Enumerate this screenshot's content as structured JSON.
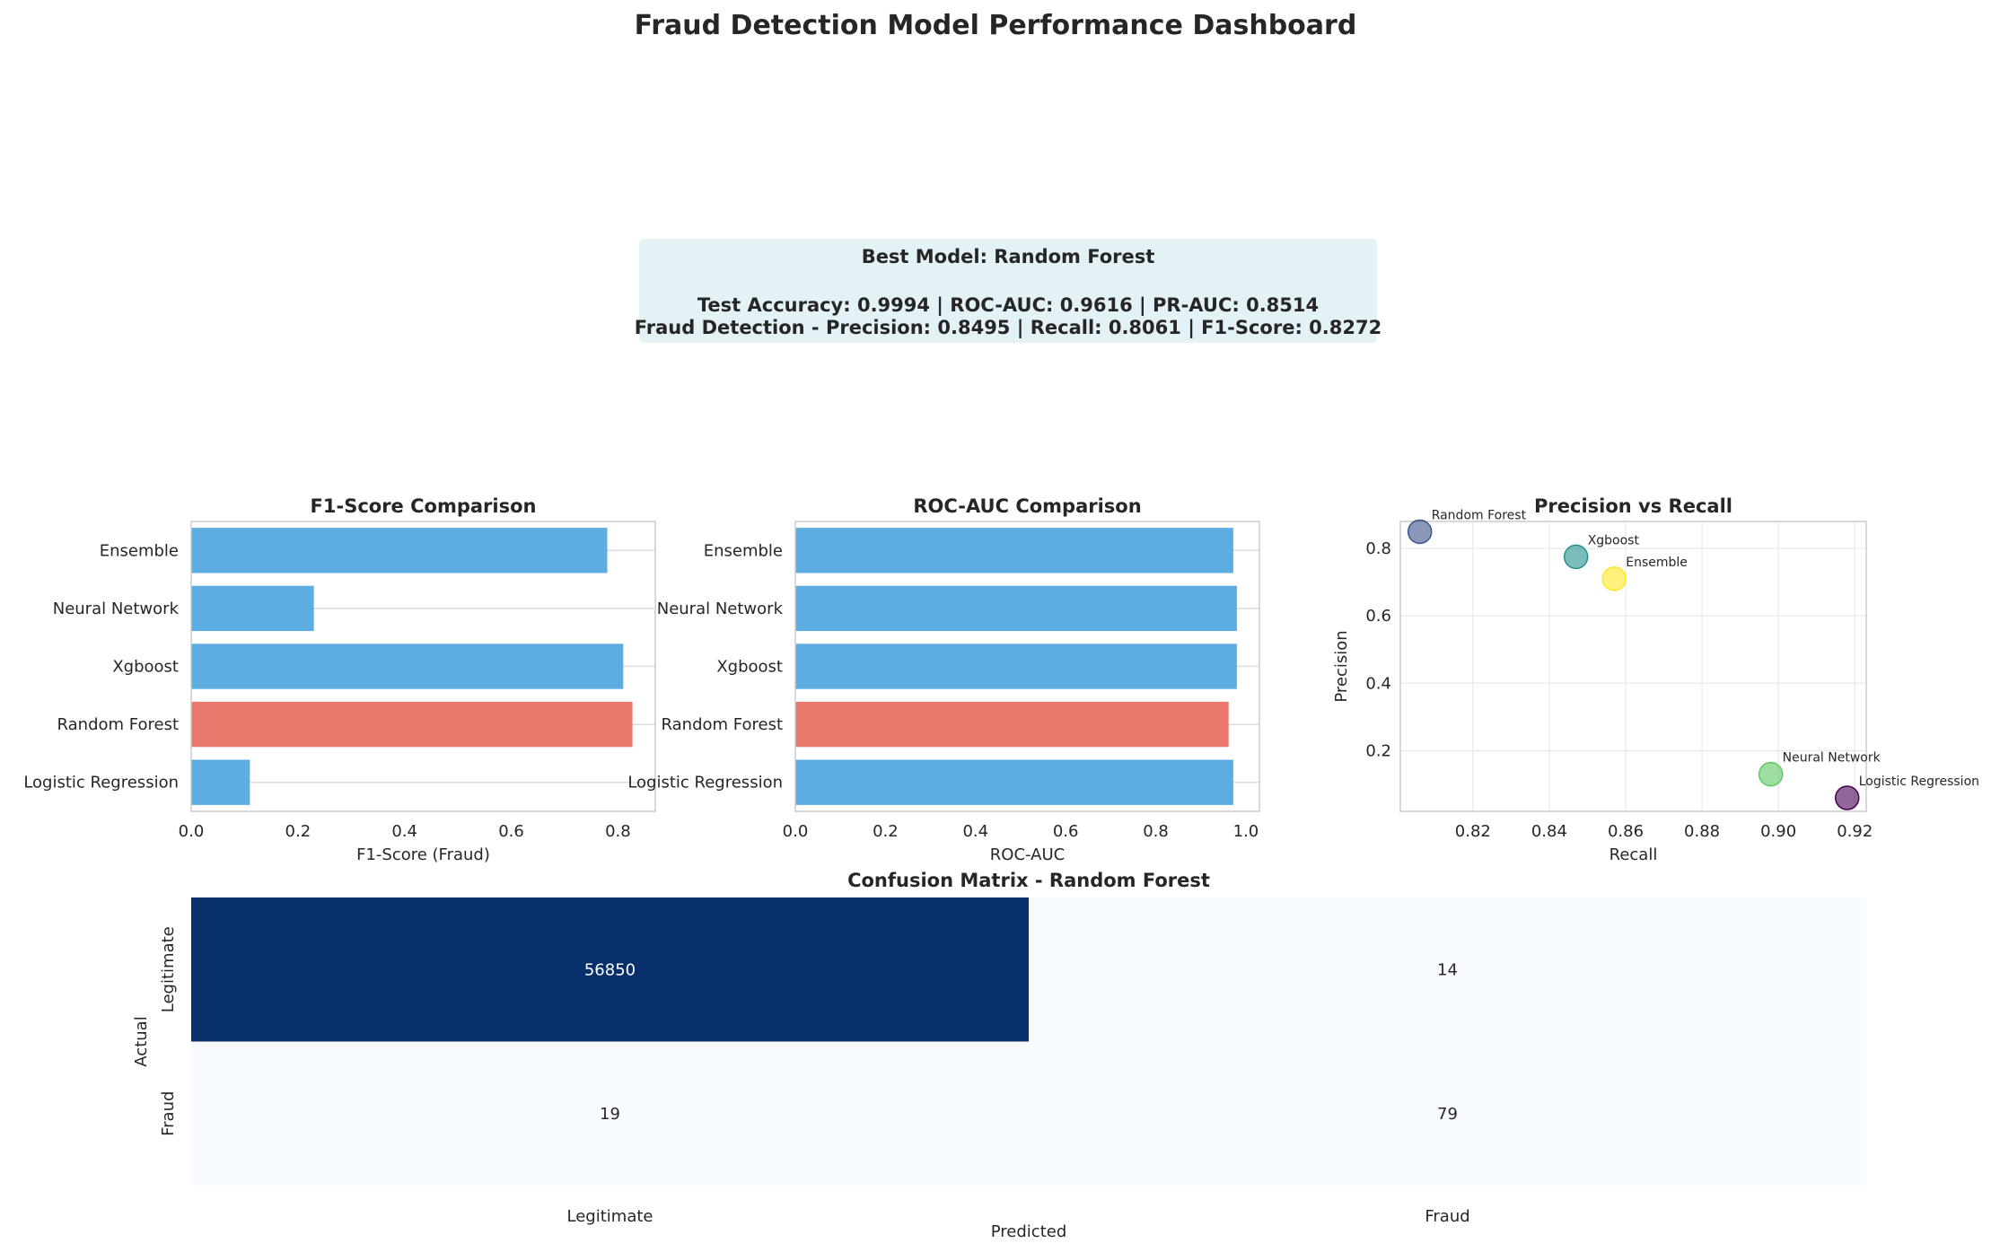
{
  "figure_title": "Fraud Detection Model Performance Dashboard",
  "summary": {
    "line1": "Best Model: Random Forest",
    "line2": "Test Accuracy: 0.9994  |  ROC-AUC: 0.9616  |  PR-AUC: 0.8514",
    "line3": "Fraud Detection - Precision: 0.8495  |  Recall: 0.8061  |  F1-Score: 0.8272",
    "box_color": "#e3f2f6"
  },
  "colors": {
    "default_bar": "#5dade2",
    "best_bar": "#e8776c",
    "heat_dark": "#08306b",
    "heat_light": "#f7fbff"
  },
  "chart_data": [
    {
      "id": "f1",
      "type": "bar",
      "orientation": "horizontal",
      "title": "F1-Score Comparison",
      "xlabel": "F1-Score (Fraud)",
      "categories": [
        "Logistic Regression",
        "Random Forest",
        "Xgboost",
        "Neural Network",
        "Ensemble"
      ],
      "values": [
        0.11,
        0.8272,
        0.81,
        0.23,
        0.78
      ],
      "highlight": "Random Forest",
      "xlim": [
        0,
        0.87
      ],
      "xticks": [
        "0.0",
        "0.2",
        "0.4",
        "0.6",
        "0.8"
      ]
    },
    {
      "id": "roc",
      "type": "bar",
      "orientation": "horizontal",
      "title": "ROC-AUC Comparison",
      "xlabel": "ROC-AUC",
      "categories": [
        "Logistic Regression",
        "Random Forest",
        "Xgboost",
        "Neural Network",
        "Ensemble"
      ],
      "values": [
        0.972,
        0.9616,
        0.98,
        0.98,
        0.972
      ],
      "highlight": "Random Forest",
      "xlim": [
        0,
        1.03
      ],
      "xticks": [
        "0.0",
        "0.2",
        "0.4",
        "0.6",
        "0.8",
        "1.0"
      ]
    },
    {
      "id": "pr",
      "type": "scatter",
      "title": "Precision vs Recall",
      "xlabel": "Recall",
      "ylabel": "Precision",
      "xlim": [
        0.801,
        0.923
      ],
      "ylim": [
        0.02,
        0.88
      ],
      "xticks": [
        "0.82",
        "0.84",
        "0.86",
        "0.88",
        "0.90",
        "0.92"
      ],
      "yticks": [
        "0.2",
        "0.4",
        "0.6",
        "0.8"
      ],
      "points": [
        {
          "label": "Logistic Regression",
          "x": 0.918,
          "y": 0.06,
          "color": "#440154"
        },
        {
          "label": "Random Forest",
          "x": 0.8061,
          "y": 0.8495,
          "color": "#3b528b"
        },
        {
          "label": "Xgboost",
          "x": 0.847,
          "y": 0.775,
          "color": "#21918c"
        },
        {
          "label": "Neural Network",
          "x": 0.898,
          "y": 0.13,
          "color": "#5ec962"
        },
        {
          "label": "Ensemble",
          "x": 0.857,
          "y": 0.71,
          "color": "#fde725"
        }
      ]
    },
    {
      "id": "cm",
      "type": "heatmap",
      "title": "Confusion Matrix - Random Forest",
      "xlabel": "Predicted",
      "ylabel": "Actual",
      "row_labels": [
        "Legitimate",
        "Fraud"
      ],
      "col_labels": [
        "Legitimate",
        "Fraud"
      ],
      "values": [
        [
          56850,
          14
        ],
        [
          19,
          79
        ]
      ]
    }
  ]
}
